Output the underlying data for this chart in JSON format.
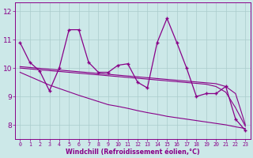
{
  "xlabel": "Windchill (Refroidissement éolien,°C)",
  "x_hours": [
    0,
    1,
    2,
    3,
    4,
    5,
    6,
    7,
    8,
    9,
    10,
    11,
    12,
    13,
    14,
    15,
    16,
    17,
    18,
    19,
    20,
    21,
    22,
    23
  ],
  "main_line": [
    10.9,
    10.2,
    9.9,
    9.2,
    10.0,
    11.35,
    11.35,
    10.2,
    9.85,
    9.85,
    10.1,
    10.15,
    9.5,
    9.3,
    10.9,
    11.75,
    10.9,
    10.0,
    9.0,
    9.1,
    9.1,
    9.35,
    8.2,
    7.8
  ],
  "trend1": [
    10.05,
    10.02,
    9.99,
    9.96,
    9.93,
    9.9,
    9.87,
    9.84,
    9.81,
    9.78,
    9.75,
    9.72,
    9.69,
    9.66,
    9.63,
    9.6,
    9.57,
    9.54,
    9.51,
    9.48,
    9.45,
    9.35,
    9.1,
    8.0
  ],
  "trend2": [
    10.0,
    9.97,
    9.94,
    9.91,
    9.88,
    9.85,
    9.82,
    9.79,
    9.76,
    9.73,
    9.7,
    9.67,
    9.64,
    9.61,
    9.58,
    9.55,
    9.52,
    9.49,
    9.46,
    9.43,
    9.35,
    9.15,
    8.6,
    7.95
  ],
  "trend3": [
    9.85,
    9.7,
    9.55,
    9.4,
    9.28,
    9.16,
    9.04,
    8.93,
    8.82,
    8.71,
    8.65,
    8.58,
    8.5,
    8.43,
    8.37,
    8.3,
    8.25,
    8.2,
    8.15,
    8.1,
    8.05,
    8.0,
    7.93,
    7.87
  ],
  "line_color": "#880088",
  "bg_color": "#cce8e8",
  "grid_color": "#aacccc",
  "ylim": [
    7.5,
    12.3
  ],
  "yticks": [
    8,
    9,
    10,
    11,
    12
  ]
}
